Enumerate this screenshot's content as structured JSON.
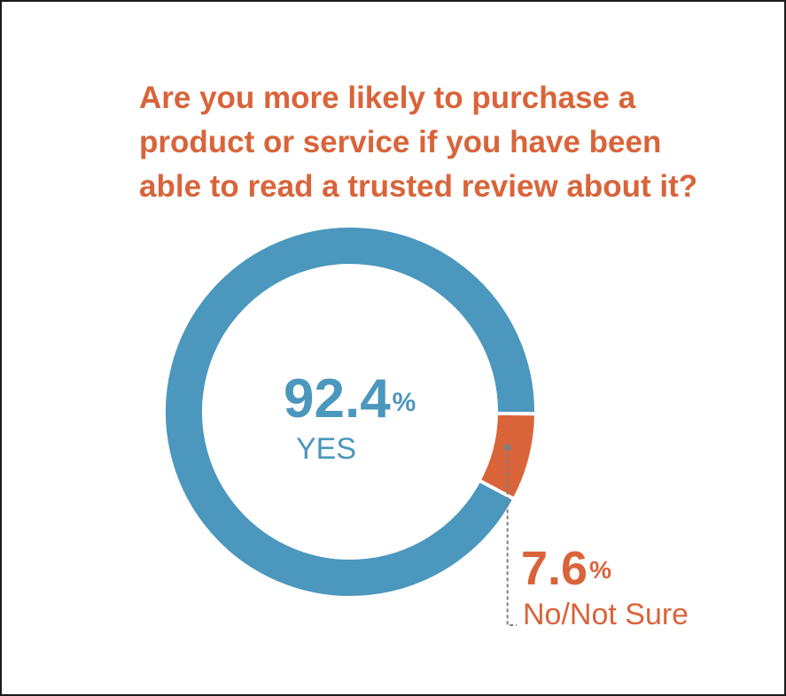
{
  "chart_data": {
    "type": "pie",
    "style": "donut",
    "title": "Are you more likely to purchase a product or service if you have been able to read a trusted review about it?",
    "title_lines": [
      "Are you more likely to purchase a",
      "product or service if you have been",
      "able to read a trusted review about it?"
    ],
    "slices": [
      {
        "label": "YES",
        "value": 92.4,
        "display": "92.4",
        "unit": "%",
        "color": "#4b97bd"
      },
      {
        "label": "No/Not Sure",
        "value": 7.6,
        "display": "7.6",
        "unit": "%",
        "color": "#d9643a"
      }
    ],
    "colors": {
      "title": "#d9643a",
      "leader_line": "#7f7f7f",
      "border": "#1a1a1a"
    }
  }
}
